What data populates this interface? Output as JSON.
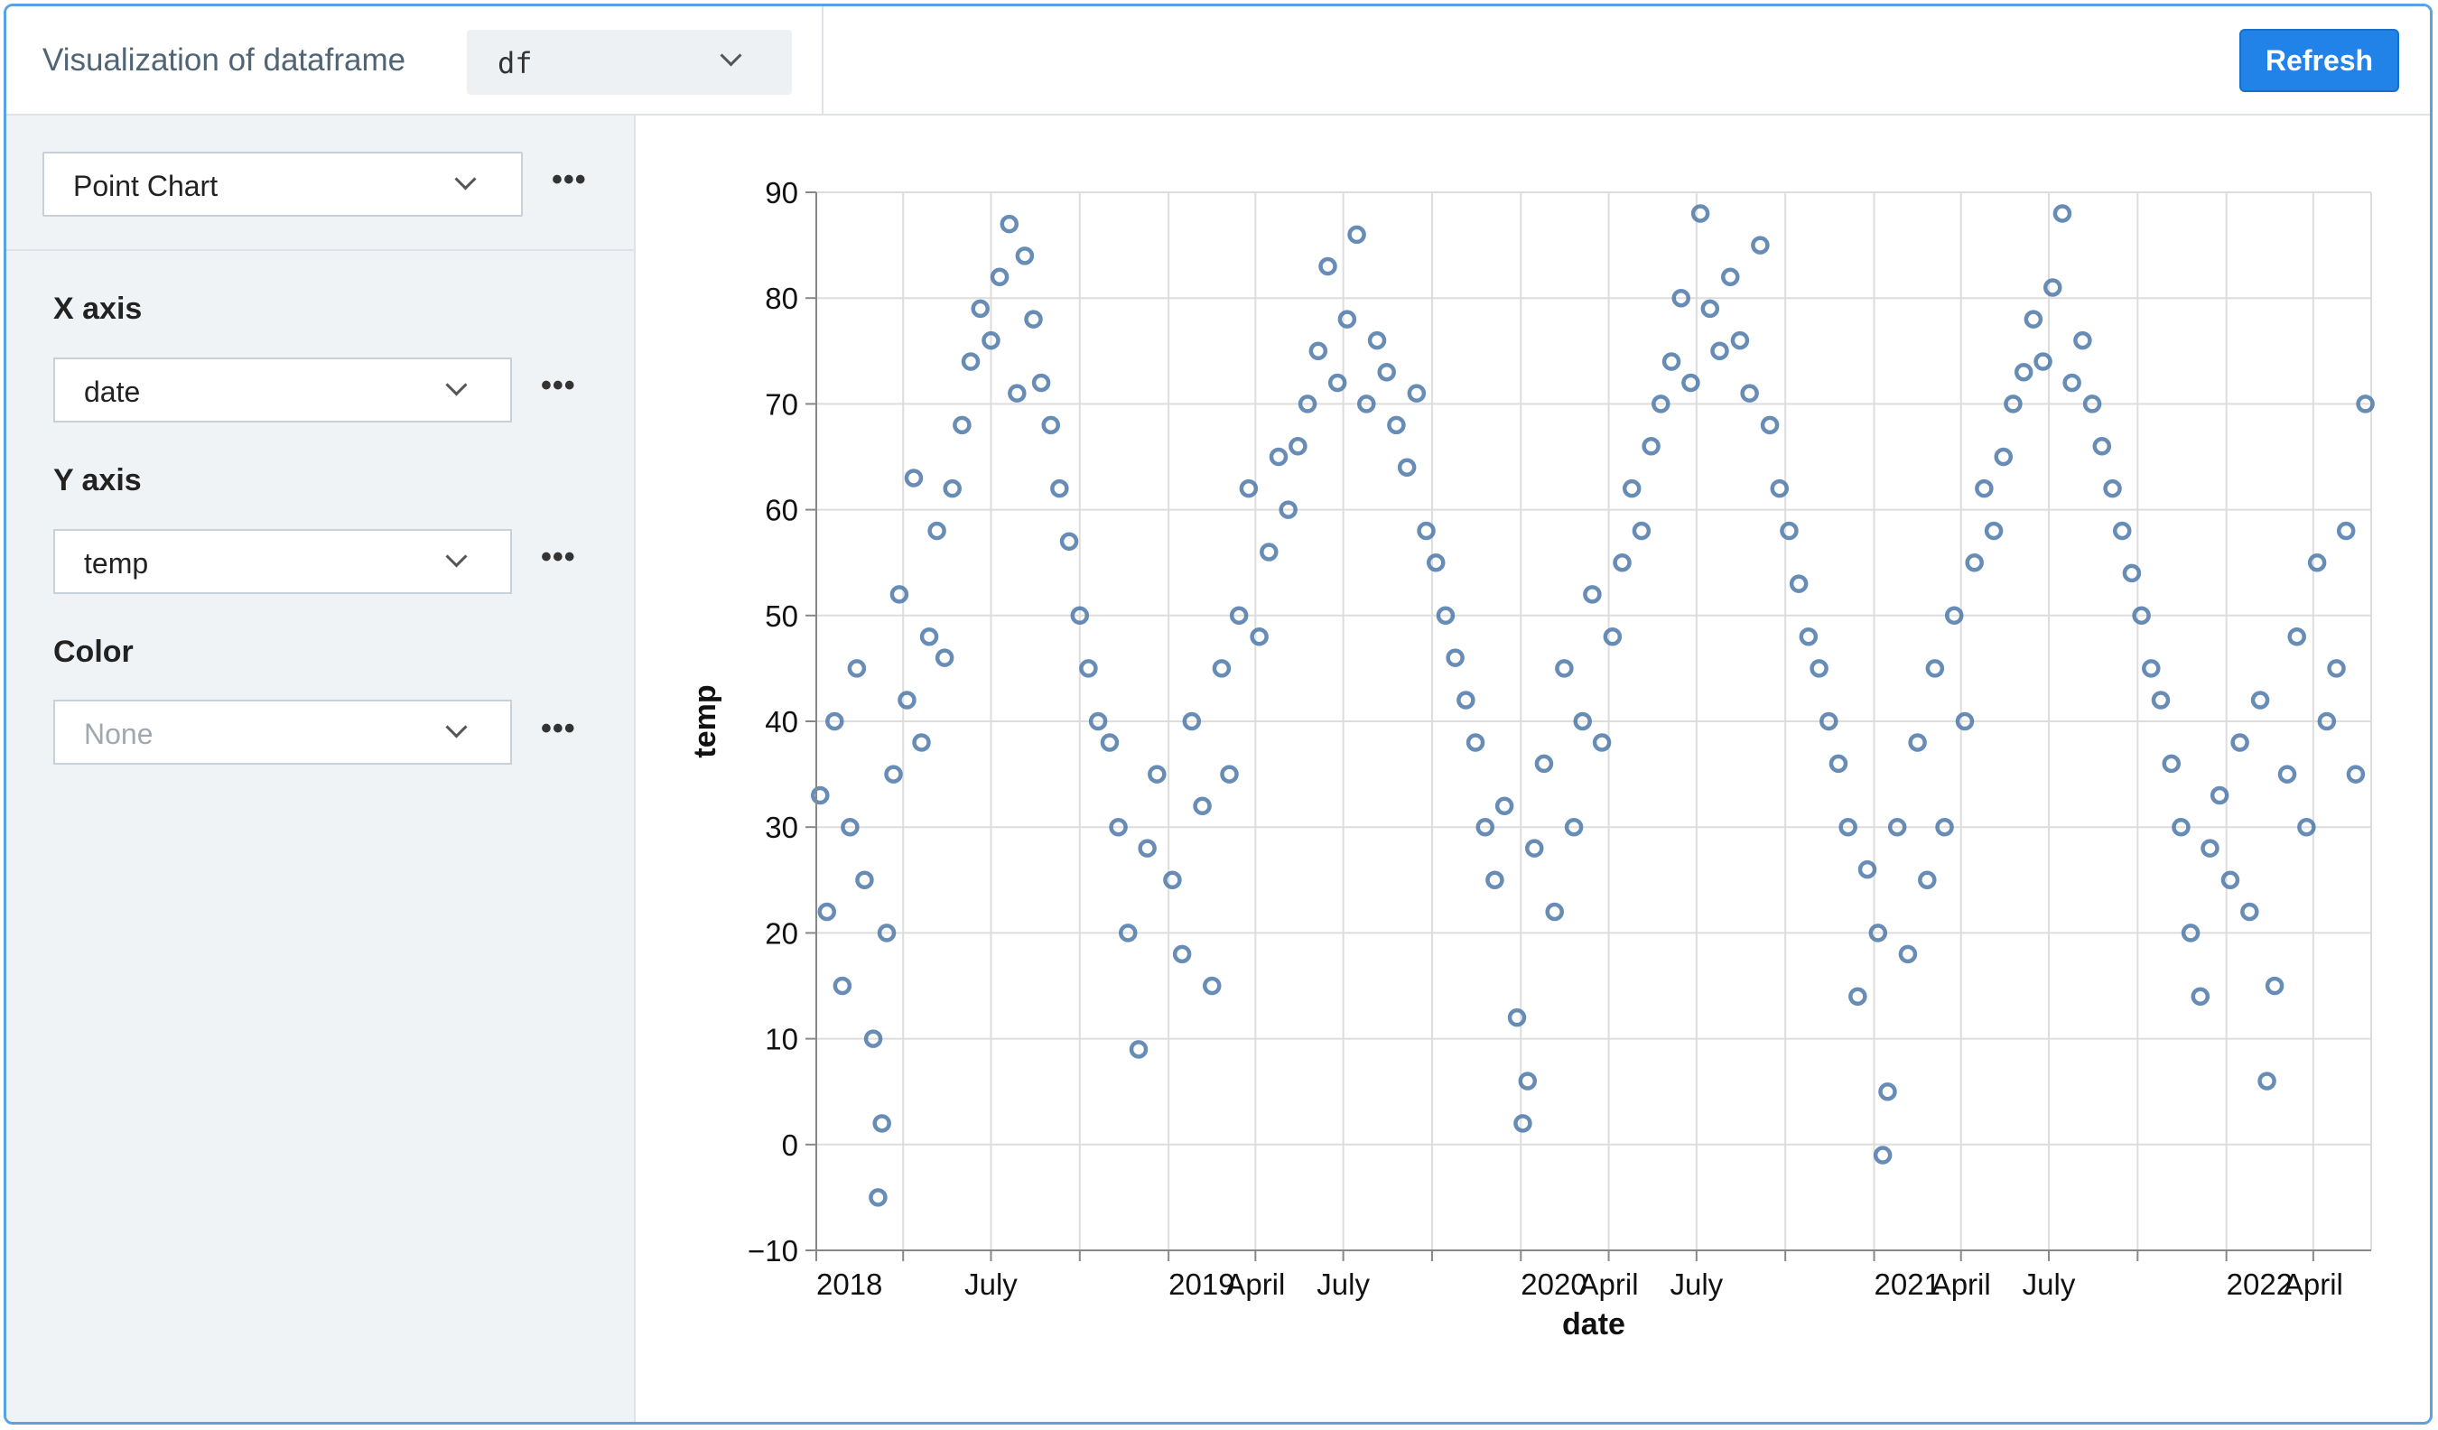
{
  "header": {
    "title": "Visualization of dataframe",
    "dataframe_select": "df",
    "refresh_label": "Refresh"
  },
  "sidebar": {
    "chart_type": "Point Chart",
    "more_label": "•••",
    "fields": [
      {
        "label": "X axis",
        "value": "date",
        "placeholder": false
      },
      {
        "label": "Y axis",
        "value": "temp",
        "placeholder": false
      },
      {
        "label": "Color",
        "value": "None",
        "placeholder": true
      }
    ]
  },
  "colors": {
    "accent": "#2183e8",
    "point": "#4c78a8",
    "frame": "#5aa2e6"
  },
  "icons": [
    "chevron-down-icon",
    "more-horizontal-icon"
  ],
  "chart_data": {
    "type": "scatter",
    "xlabel": "date",
    "ylabel": "temp",
    "ylim": [
      -10,
      90
    ],
    "xlim": [
      "2018-01-01",
      "2022-05-31"
    ],
    "y_ticks": [
      -10,
      0,
      10,
      20,
      30,
      40,
      50,
      60,
      70,
      80,
      90
    ],
    "x_ticks": [
      {
        "date": "2018-01-01",
        "label": "2018"
      },
      {
        "date": "2018-04-01",
        "label": ""
      },
      {
        "date": "2018-07-01",
        "label": "July"
      },
      {
        "date": "2018-10-01",
        "label": ""
      },
      {
        "date": "2019-01-01",
        "label": "2019"
      },
      {
        "date": "2019-04-01",
        "label": "April"
      },
      {
        "date": "2019-07-01",
        "label": "July"
      },
      {
        "date": "2019-10-01",
        "label": ""
      },
      {
        "date": "2020-01-01",
        "label": "2020"
      },
      {
        "date": "2020-04-01",
        "label": "April"
      },
      {
        "date": "2020-07-01",
        "label": "July"
      },
      {
        "date": "2020-10-01",
        "label": ""
      },
      {
        "date": "2021-01-01",
        "label": "2021"
      },
      {
        "date": "2021-04-01",
        "label": "April"
      },
      {
        "date": "2021-07-01",
        "label": "July"
      },
      {
        "date": "2021-10-01",
        "label": ""
      },
      {
        "date": "2022-01-01",
        "label": "2022"
      },
      {
        "date": "2022-04-01",
        "label": "April"
      }
    ],
    "grid": true,
    "series": [
      {
        "points": [
          [
            "2018-01-05",
            33
          ],
          [
            "2018-01-12",
            22
          ],
          [
            "2018-01-20",
            40
          ],
          [
            "2018-01-28",
            15
          ],
          [
            "2018-02-05",
            30
          ],
          [
            "2018-02-12",
            45
          ],
          [
            "2018-02-20",
            25
          ],
          [
            "2018-03-01",
            10
          ],
          [
            "2018-03-06",
            -5
          ],
          [
            "2018-03-10",
            2
          ],
          [
            "2018-03-15",
            20
          ],
          [
            "2018-03-22",
            35
          ],
          [
            "2018-03-28",
            52
          ],
          [
            "2018-04-05",
            42
          ],
          [
            "2018-04-12",
            63
          ],
          [
            "2018-04-20",
            38
          ],
          [
            "2018-04-28",
            48
          ],
          [
            "2018-05-06",
            58
          ],
          [
            "2018-05-14",
            46
          ],
          [
            "2018-05-22",
            62
          ],
          [
            "2018-06-01",
            68
          ],
          [
            "2018-06-10",
            74
          ],
          [
            "2018-06-20",
            79
          ],
          [
            "2018-07-01",
            76
          ],
          [
            "2018-07-10",
            82
          ],
          [
            "2018-07-20",
            87
          ],
          [
            "2018-07-28",
            71
          ],
          [
            "2018-08-05",
            84
          ],
          [
            "2018-08-14",
            78
          ],
          [
            "2018-08-22",
            72
          ],
          [
            "2018-09-01",
            68
          ],
          [
            "2018-09-10",
            62
          ],
          [
            "2018-09-20",
            57
          ],
          [
            "2018-10-01",
            50
          ],
          [
            "2018-10-10",
            45
          ],
          [
            "2018-10-20",
            40
          ],
          [
            "2018-11-01",
            38
          ],
          [
            "2018-11-10",
            30
          ],
          [
            "2018-11-20",
            20
          ],
          [
            "2018-12-01",
            9
          ],
          [
            "2018-12-10",
            28
          ],
          [
            "2018-12-20",
            35
          ],
          [
            "2019-01-05",
            25
          ],
          [
            "2019-01-15",
            18
          ],
          [
            "2019-01-25",
            40
          ],
          [
            "2019-02-05",
            32
          ],
          [
            "2019-02-15",
            15
          ],
          [
            "2019-02-25",
            45
          ],
          [
            "2019-03-05",
            35
          ],
          [
            "2019-03-15",
            50
          ],
          [
            "2019-03-25",
            62
          ],
          [
            "2019-04-05",
            48
          ],
          [
            "2019-04-15",
            56
          ],
          [
            "2019-04-25",
            65
          ],
          [
            "2019-05-05",
            60
          ],
          [
            "2019-05-15",
            66
          ],
          [
            "2019-05-25",
            70
          ],
          [
            "2019-06-05",
            75
          ],
          [
            "2019-06-15",
            83
          ],
          [
            "2019-06-25",
            72
          ],
          [
            "2019-07-05",
            78
          ],
          [
            "2019-07-15",
            86
          ],
          [
            "2019-07-25",
            70
          ],
          [
            "2019-08-05",
            76
          ],
          [
            "2019-08-15",
            73
          ],
          [
            "2019-08-25",
            68
          ],
          [
            "2019-09-05",
            64
          ],
          [
            "2019-09-15",
            71
          ],
          [
            "2019-09-25",
            58
          ],
          [
            "2019-10-05",
            55
          ],
          [
            "2019-10-15",
            50
          ],
          [
            "2019-10-25",
            46
          ],
          [
            "2019-11-05",
            42
          ],
          [
            "2019-11-15",
            38
          ],
          [
            "2019-11-25",
            30
          ],
          [
            "2019-12-05",
            25
          ],
          [
            "2019-12-15",
            32
          ],
          [
            "2019-12-28",
            12
          ],
          [
            "2020-01-03",
            2
          ],
          [
            "2020-01-08",
            6
          ],
          [
            "2020-01-15",
            28
          ],
          [
            "2020-01-25",
            36
          ],
          [
            "2020-02-05",
            22
          ],
          [
            "2020-02-15",
            45
          ],
          [
            "2020-02-25",
            30
          ],
          [
            "2020-03-05",
            40
          ],
          [
            "2020-03-15",
            52
          ],
          [
            "2020-03-25",
            38
          ],
          [
            "2020-04-05",
            48
          ],
          [
            "2020-04-15",
            55
          ],
          [
            "2020-04-25",
            62
          ],
          [
            "2020-05-05",
            58
          ],
          [
            "2020-05-15",
            66
          ],
          [
            "2020-05-25",
            70
          ],
          [
            "2020-06-05",
            74
          ],
          [
            "2020-06-15",
            80
          ],
          [
            "2020-06-25",
            72
          ],
          [
            "2020-07-05",
            88
          ],
          [
            "2020-07-15",
            79
          ],
          [
            "2020-07-25",
            75
          ],
          [
            "2020-08-05",
            82
          ],
          [
            "2020-08-15",
            76
          ],
          [
            "2020-08-25",
            71
          ],
          [
            "2020-09-05",
            85
          ],
          [
            "2020-09-15",
            68
          ],
          [
            "2020-09-25",
            62
          ],
          [
            "2020-10-05",
            58
          ],
          [
            "2020-10-15",
            53
          ],
          [
            "2020-10-25",
            48
          ],
          [
            "2020-11-05",
            45
          ],
          [
            "2020-11-15",
            40
          ],
          [
            "2020-11-25",
            36
          ],
          [
            "2020-12-05",
            30
          ],
          [
            "2020-12-15",
            14
          ],
          [
            "2020-12-25",
            26
          ],
          [
            "2021-01-05",
            20
          ],
          [
            "2021-01-10",
            -1
          ],
          [
            "2021-01-15",
            5
          ],
          [
            "2021-01-25",
            30
          ],
          [
            "2021-02-05",
            18
          ],
          [
            "2021-02-15",
            38
          ],
          [
            "2021-02-25",
            25
          ],
          [
            "2021-03-05",
            45
          ],
          [
            "2021-03-15",
            30
          ],
          [
            "2021-03-25",
            50
          ],
          [
            "2021-04-05",
            40
          ],
          [
            "2021-04-15",
            55
          ],
          [
            "2021-04-25",
            62
          ],
          [
            "2021-05-05",
            58
          ],
          [
            "2021-05-15",
            65
          ],
          [
            "2021-05-25",
            70
          ],
          [
            "2021-06-05",
            73
          ],
          [
            "2021-06-15",
            78
          ],
          [
            "2021-06-25",
            74
          ],
          [
            "2021-07-05",
            81
          ],
          [
            "2021-07-15",
            88
          ],
          [
            "2021-07-25",
            72
          ],
          [
            "2021-08-05",
            76
          ],
          [
            "2021-08-15",
            70
          ],
          [
            "2021-08-25",
            66
          ],
          [
            "2021-09-05",
            62
          ],
          [
            "2021-09-15",
            58
          ],
          [
            "2021-09-25",
            54
          ],
          [
            "2021-10-05",
            50
          ],
          [
            "2021-10-15",
            45
          ],
          [
            "2021-10-25",
            42
          ],
          [
            "2021-11-05",
            36
          ],
          [
            "2021-11-15",
            30
          ],
          [
            "2021-11-25",
            20
          ],
          [
            "2021-12-05",
            14
          ],
          [
            "2021-12-15",
            28
          ],
          [
            "2021-12-25",
            33
          ],
          [
            "2022-01-05",
            25
          ],
          [
            "2022-01-15",
            38
          ],
          [
            "2022-01-25",
            22
          ],
          [
            "2022-02-05",
            42
          ],
          [
            "2022-02-12",
            6
          ],
          [
            "2022-02-20",
            15
          ],
          [
            "2022-03-05",
            35
          ],
          [
            "2022-03-15",
            48
          ],
          [
            "2022-03-25",
            30
          ],
          [
            "2022-04-05",
            55
          ],
          [
            "2022-04-15",
            40
          ],
          [
            "2022-04-25",
            45
          ],
          [
            "2022-05-05",
            58
          ],
          [
            "2022-05-15",
            35
          ],
          [
            "2022-05-25",
            70
          ]
        ]
      }
    ]
  }
}
